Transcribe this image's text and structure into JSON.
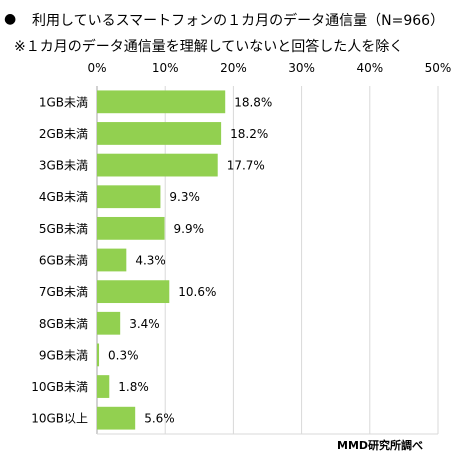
{
  "chart_data": {
    "type": "bar",
    "orientation": "horizontal",
    "title": "利用しているスマートフォンの１カ月のデータ通信量（N=966）",
    "subtitle": "※１カ月のデータ通信量を理解していないと回答した人を除く",
    "categories": [
      "1GB未満",
      "2GB未満",
      "3GB未満",
      "4GB未満",
      "5GB未満",
      "6GB未満",
      "7GB未満",
      "8GB未満",
      "9GB未満",
      "10GB未満",
      "10GB以上"
    ],
    "values": [
      18.8,
      18.2,
      17.7,
      9.3,
      9.9,
      4.3,
      10.6,
      3.4,
      0.3,
      1.8,
      5.6
    ],
    "value_labels": [
      "18.8%",
      "18.2%",
      "17.7%",
      "9.3%",
      "9.9%",
      "4.3%",
      "10.6%",
      "3.4%",
      "0.3%",
      "1.8%",
      "5.6%"
    ],
    "xlim": [
      0,
      50
    ],
    "x_ticks": [
      "0%",
      "10%",
      "20%",
      "30%",
      "40%",
      "50%"
    ],
    "grid": true,
    "bar_color": "#92d050",
    "grid_color": "#d9d9d9"
  },
  "bullet": "●",
  "credit": "MMD研究所調べ"
}
